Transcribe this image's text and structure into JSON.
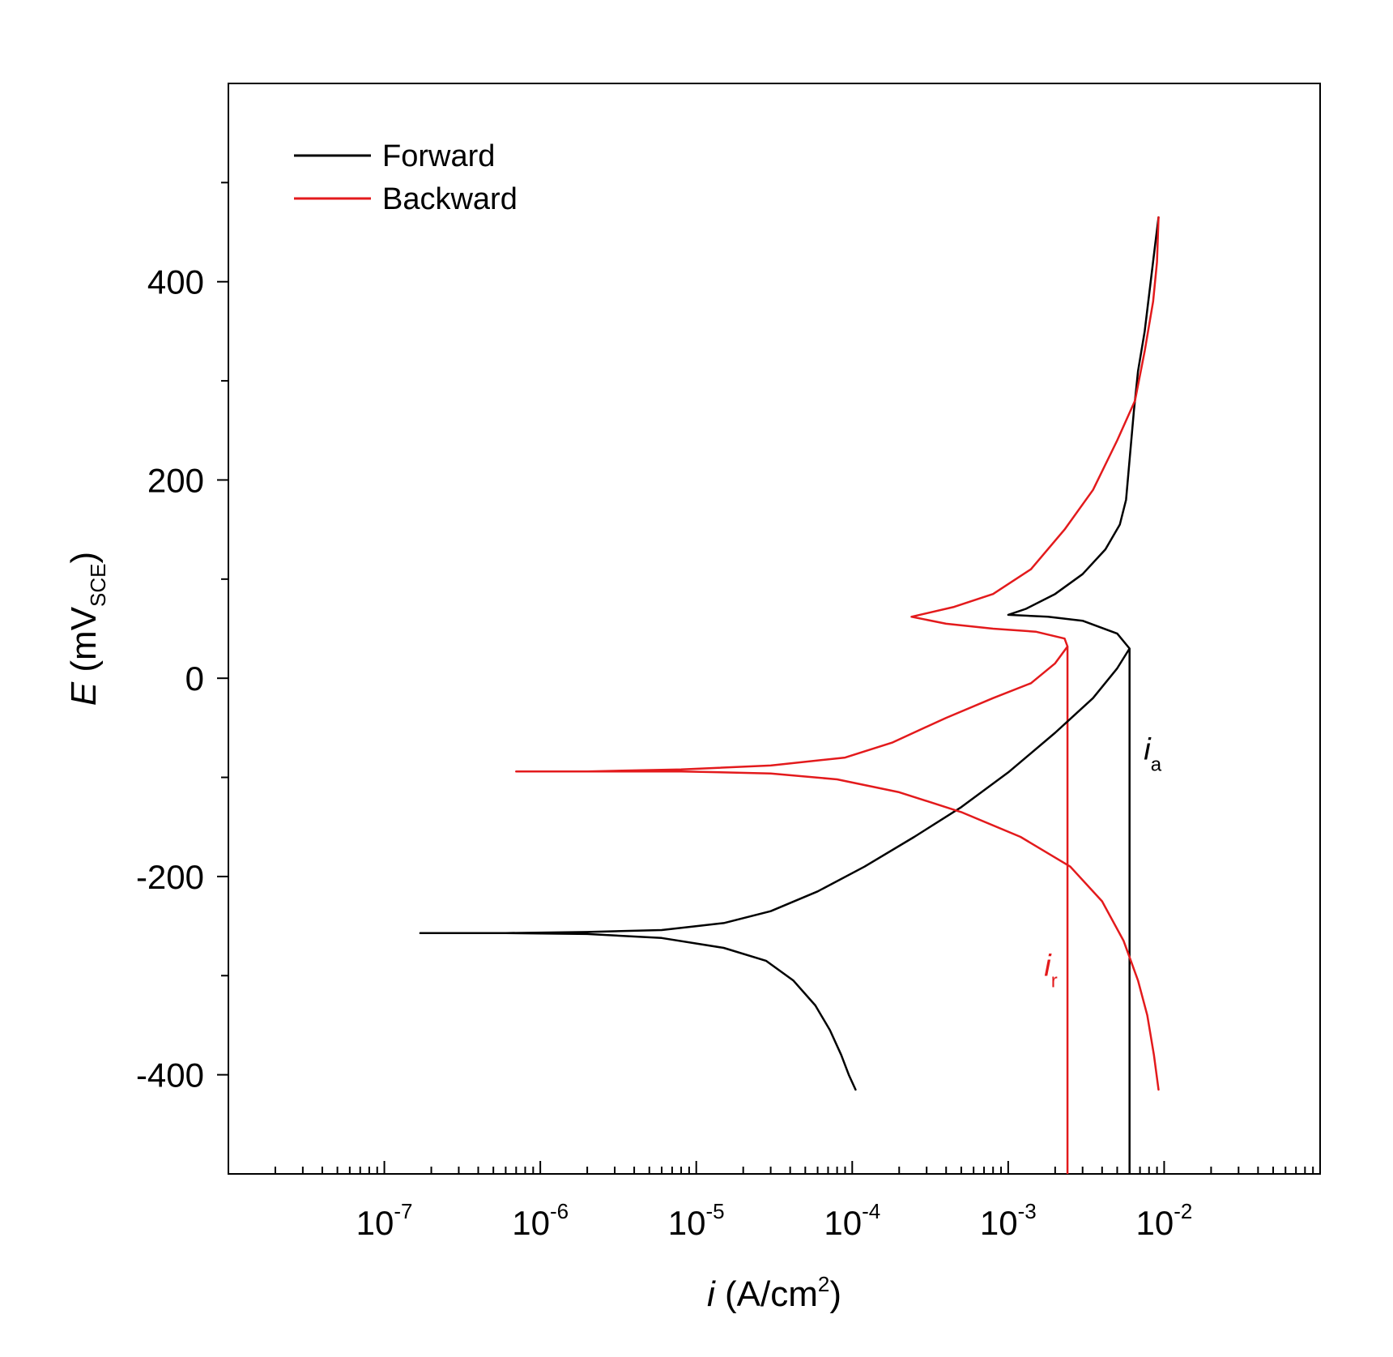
{
  "chart_data": {
    "type": "line",
    "x_scale": "log",
    "xlim": [
      1e-08,
      0.1
    ],
    "ylim": [
      -500,
      600
    ],
    "x_tick_values": [
      1e-07,
      1e-06,
      1e-05,
      0.0001,
      0.001,
      0.01
    ],
    "x_tick_labels": [
      {
        "base": "10",
        "exp": "-7"
      },
      {
        "base": "10",
        "exp": "-6"
      },
      {
        "base": "10",
        "exp": "-5"
      },
      {
        "base": "10",
        "exp": "-4"
      },
      {
        "base": "10",
        "exp": "-3"
      },
      {
        "base": "10",
        "exp": "-2"
      }
    ],
    "y_tick_values": [
      -400,
      -200,
      0,
      200,
      400
    ],
    "y_tick_labels": [
      "-400",
      "-200",
      "0",
      "200",
      "400"
    ],
    "xlabel": {
      "symbol": "i",
      "unit_main": " (A/cm",
      "unit_sup": "2",
      "unit_close": ")"
    },
    "ylabel": {
      "symbol": "E",
      "unit_main": " (mV",
      "unit_sub": "SCE",
      "unit_close": ")"
    },
    "grid": false,
    "legend_position": "top-left",
    "series": [
      {
        "name": "Forward",
        "color": "#000000",
        "points": [
          [
            0.000105,
            -415
          ],
          [
            9.5e-05,
            -400
          ],
          [
            8.5e-05,
            -380
          ],
          [
            7.2e-05,
            -355
          ],
          [
            5.8e-05,
            -330
          ],
          [
            4.2e-05,
            -305
          ],
          [
            2.8e-05,
            -285
          ],
          [
            1.5e-05,
            -272
          ],
          [
            6e-06,
            -262
          ],
          [
            2e-06,
            -258
          ],
          [
            6e-07,
            -257
          ],
          [
            1.7e-07,
            -257
          ],
          [
            6e-07,
            -257
          ],
          [
            2e-06,
            -256
          ],
          [
            6e-06,
            -254
          ],
          [
            1.5e-05,
            -247
          ],
          [
            3e-05,
            -235
          ],
          [
            6e-05,
            -215
          ],
          [
            0.00012,
            -190
          ],
          [
            0.00025,
            -160
          ],
          [
            0.0005,
            -130
          ],
          [
            0.001,
            -95
          ],
          [
            0.002,
            -55
          ],
          [
            0.0035,
            -20
          ],
          [
            0.005,
            10
          ],
          [
            0.006,
            30
          ],
          [
            0.005,
            45
          ],
          [
            0.003,
            58
          ],
          [
            0.0018,
            62
          ],
          [
            0.001,
            64
          ],
          [
            0.0013,
            70
          ],
          [
            0.002,
            85
          ],
          [
            0.003,
            105
          ],
          [
            0.0042,
            130
          ],
          [
            0.0052,
            155
          ],
          [
            0.0057,
            180
          ],
          [
            0.006,
            220
          ],
          [
            0.0064,
            270
          ],
          [
            0.0068,
            310
          ],
          [
            0.0075,
            350
          ],
          [
            0.0082,
            400
          ],
          [
            0.0088,
            440
          ],
          [
            0.0092,
            465
          ]
        ]
      },
      {
        "name": "Backward",
        "color": "#e31a1c",
        "points": [
          [
            0.0092,
            465
          ],
          [
            0.009,
            420
          ],
          [
            0.0085,
            380
          ],
          [
            0.0075,
            330
          ],
          [
            0.0065,
            280
          ],
          [
            0.005,
            240
          ],
          [
            0.0035,
            190
          ],
          [
            0.0023,
            150
          ],
          [
            0.0014,
            110
          ],
          [
            0.0008,
            85
          ],
          [
            0.00045,
            72
          ],
          [
            0.00024,
            62
          ],
          [
            0.0004,
            55
          ],
          [
            0.0008,
            50
          ],
          [
            0.0015,
            47
          ],
          [
            0.0023,
            40
          ],
          [
            0.0024,
            32
          ],
          [
            0.002,
            15
          ],
          [
            0.0014,
            -5
          ],
          [
            0.0008,
            -20
          ],
          [
            0.0004,
            -40
          ],
          [
            0.00018,
            -65
          ],
          [
            9e-05,
            -80
          ],
          [
            3e-05,
            -88
          ],
          [
            8e-06,
            -92
          ],
          [
            2e-06,
            -94
          ],
          [
            7e-07,
            -94
          ],
          [
            2e-06,
            -94
          ],
          [
            8e-06,
            -94
          ],
          [
            3e-05,
            -96
          ],
          [
            8e-05,
            -102
          ],
          [
            0.0002,
            -115
          ],
          [
            0.0005,
            -135
          ],
          [
            0.0012,
            -160
          ],
          [
            0.0025,
            -190
          ],
          [
            0.004,
            -225
          ],
          [
            0.0055,
            -265
          ],
          [
            0.0068,
            -305
          ],
          [
            0.0078,
            -340
          ],
          [
            0.0086,
            -380
          ],
          [
            0.0092,
            -415
          ]
        ]
      }
    ],
    "vertical_lines": [
      {
        "color": "#000000",
        "x": 0.006,
        "y_from": -500,
        "y_to": 30
      },
      {
        "color": "#e31a1c",
        "x": 0.0024,
        "y_from": -500,
        "y_to": 32
      }
    ],
    "annotations": [
      {
        "text": "i",
        "sub": "a",
        "color": "#000000",
        "x": 0.0074,
        "y": -82
      },
      {
        "text": "i",
        "sub": "r",
        "color": "#e31a1c",
        "x": 0.0017,
        "y": -300
      }
    ]
  }
}
